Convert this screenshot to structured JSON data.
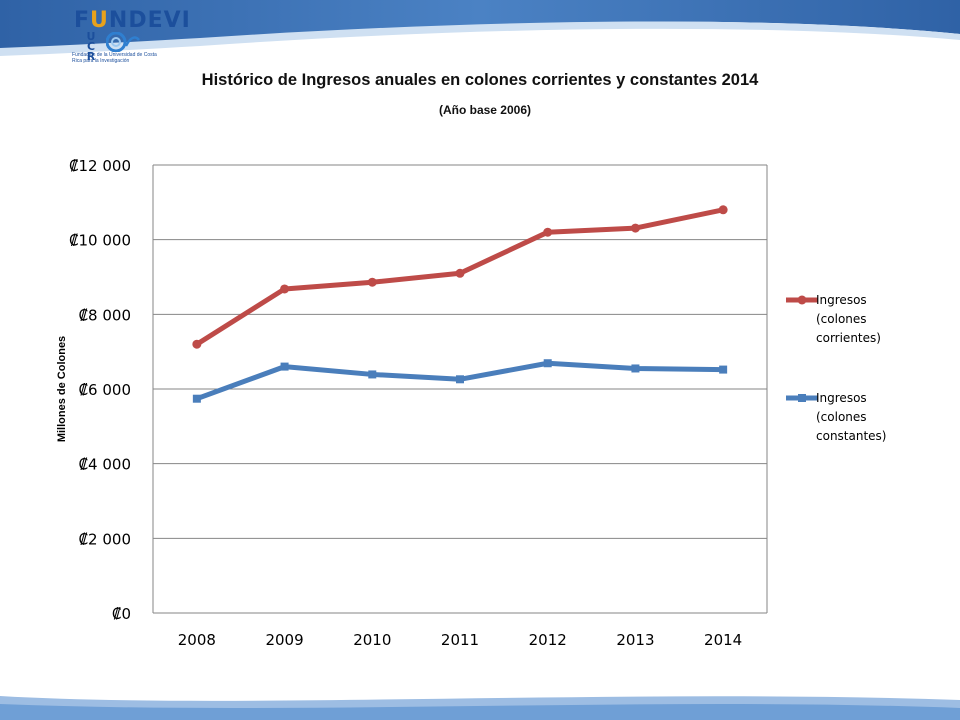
{
  "logo": {
    "word_a": "F",
    "word_accent": "U",
    "word_b": "NDEVI",
    "ucr": "UCR",
    "subtitle": "Fundación de la Universidad de Costa Rica para la Investigación"
  },
  "colors": {
    "current": "#be4b48",
    "constant": "#4a7ebb",
    "band": "#3e75b4",
    "grid": "#868686"
  },
  "chart_data": {
    "type": "line",
    "title": "Histórico de Ingresos anuales en colones corrientes y constantes 2014",
    "subtitle": "(Año base 2006)",
    "xlabel": "",
    "ylabel": "Millones de Colones",
    "categories": [
      "2008",
      "2009",
      "2010",
      "2011",
      "2012",
      "2013",
      "2014"
    ],
    "ylim": [
      0,
      12000
    ],
    "yticks": [
      "₡0",
      "₡2 000",
      "₡4 000",
      "₡6 000",
      "₡8 000",
      "₡10 000",
      "₡12 000"
    ],
    "grid": true,
    "legend_position": "right",
    "series": [
      {
        "name": "Ingresos (colones corrientes)",
        "legend_lines": [
          "Ingresos",
          "(colones",
          "corrientes)"
        ],
        "color": "#be4b48",
        "marker": "circle",
        "values": [
          7200,
          8680,
          8860,
          9100,
          10200,
          10310,
          10800
        ]
      },
      {
        "name": "Ingresos (colones constantes)",
        "legend_lines": [
          "Ingresos",
          "(colones",
          "constantes)"
        ],
        "color": "#4a7ebb",
        "marker": "square",
        "values": [
          5740,
          6600,
          6390,
          6260,
          6690,
          6550,
          6520
        ]
      }
    ]
  }
}
